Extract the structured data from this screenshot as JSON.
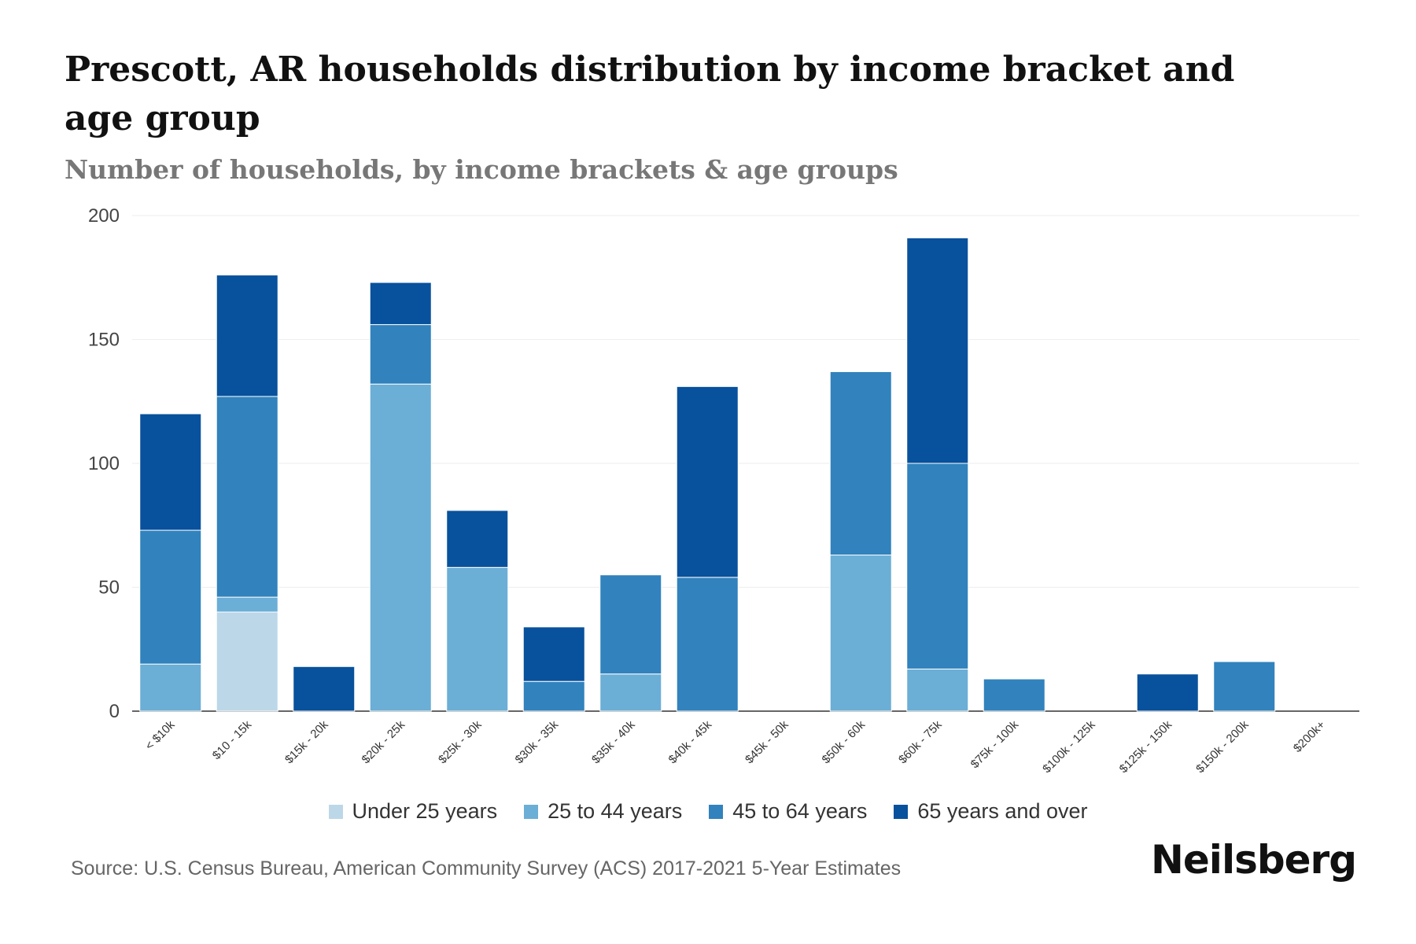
{
  "title": "Prescott, AR households distribution by income bracket and age group",
  "subtitle": "Number of households, by income brackets & age groups",
  "source": "Source: U.S. Census Bureau, American Community Survey (ACS) 2017-2021 5-Year Estimates",
  "brand": "Neilsberg",
  "colors": {
    "under_25": "#bcd7e8",
    "age_25_44": "#6baed6",
    "age_45_64": "#3182bd",
    "age_65_over": "#08519c",
    "grid": "#eeeeee",
    "axis": "#333333"
  },
  "chart_data": {
    "type": "bar",
    "stacked": true,
    "title": "Prescott, AR households distribution by income bracket and age group",
    "subtitle": "Number of households, by income brackets & age groups",
    "xlabel": "",
    "ylabel": "",
    "ylim": [
      0,
      200
    ],
    "yticks": [
      0,
      50,
      100,
      150,
      200
    ],
    "grid": true,
    "legend_position": "bottom",
    "categories": [
      "< $10k",
      "$10 - 15k",
      "$15k - 20k",
      "$20k - 25k",
      "$25k - 30k",
      "$30k - 35k",
      "$35k - 40k",
      "$40k - 45k",
      "$45k - 50k",
      "$50k - 60k",
      "$60k - 75k",
      "$75k - 100k",
      "$100k - 125k",
      "$125k - 150k",
      "$150k - 200k",
      "$200k+"
    ],
    "series": [
      {
        "name": "Under 25 years",
        "color": "#bcd7e8",
        "values": [
          0,
          40,
          0,
          0,
          0,
          0,
          0,
          0,
          0,
          0,
          0,
          0,
          0,
          0,
          0,
          0
        ]
      },
      {
        "name": "25 to 44 years",
        "color": "#6baed6",
        "values": [
          19,
          6,
          0,
          132,
          58,
          0,
          15,
          0,
          0,
          63,
          17,
          0,
          0,
          0,
          0,
          0
        ]
      },
      {
        "name": "45 to 64 years",
        "color": "#3182bd",
        "values": [
          54,
          81,
          0,
          24,
          0,
          12,
          40,
          54,
          0,
          74,
          83,
          13,
          0,
          0,
          20,
          0
        ]
      },
      {
        "name": "65 years and over",
        "color": "#08519c",
        "values": [
          47,
          49,
          18,
          17,
          23,
          22,
          0,
          77,
          0,
          0,
          91,
          0,
          0,
          15,
          0,
          0
        ]
      }
    ]
  }
}
